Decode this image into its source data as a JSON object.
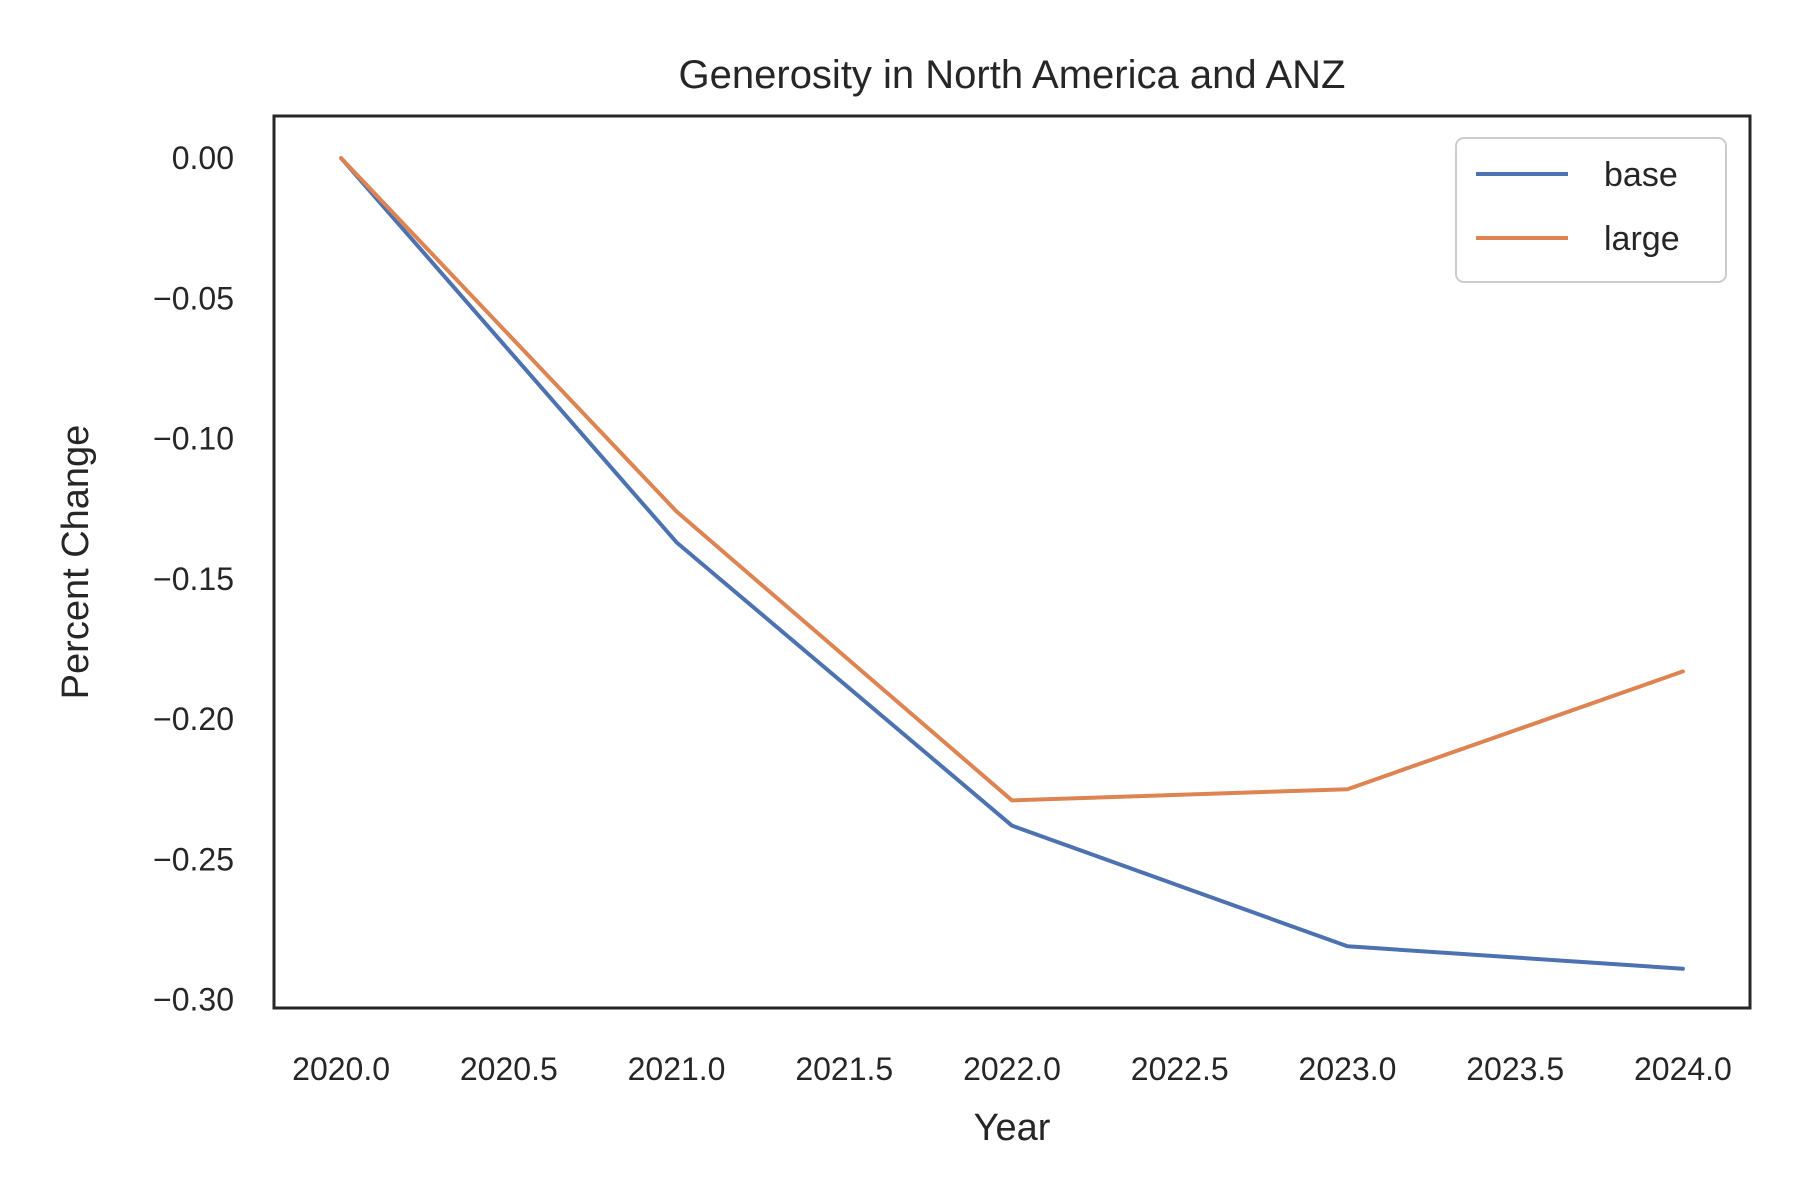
{
  "chart_data": {
    "type": "line",
    "title": "Generosity in North America and ANZ",
    "xlabel": "Year",
    "ylabel": "Percent Change",
    "x": [
      2020,
      2021,
      2022,
      2023,
      2024
    ],
    "series": [
      {
        "name": "base",
        "color": "#4c72b0",
        "values": [
          0.0,
          -0.137,
          -0.238,
          -0.281,
          -0.289
        ]
      },
      {
        "name": "large",
        "color": "#dd8452",
        "values": [
          0.0,
          -0.126,
          -0.229,
          -0.225,
          -0.183
        ]
      }
    ],
    "xlim": [
      2019.8,
      2024.2
    ],
    "ylim": [
      -0.303,
      0.015
    ],
    "xticks": [
      2020.0,
      2020.5,
      2021.0,
      2021.5,
      2022.0,
      2022.5,
      2023.0,
      2023.5,
      2024.0
    ],
    "xtick_labels": [
      "2020.0",
      "2020.5",
      "2021.0",
      "2021.5",
      "2022.0",
      "2022.5",
      "2023.0",
      "2023.5",
      "2024.0"
    ],
    "yticks": [
      0.0,
      -0.05,
      -0.1,
      -0.15,
      -0.2,
      -0.25,
      -0.3
    ],
    "ytick_labels": [
      "0.00",
      "−0.05",
      "−0.10",
      "−0.15",
      "−0.20",
      "−0.25",
      "−0.30"
    ],
    "grid": false,
    "legend_position": "top-right"
  }
}
